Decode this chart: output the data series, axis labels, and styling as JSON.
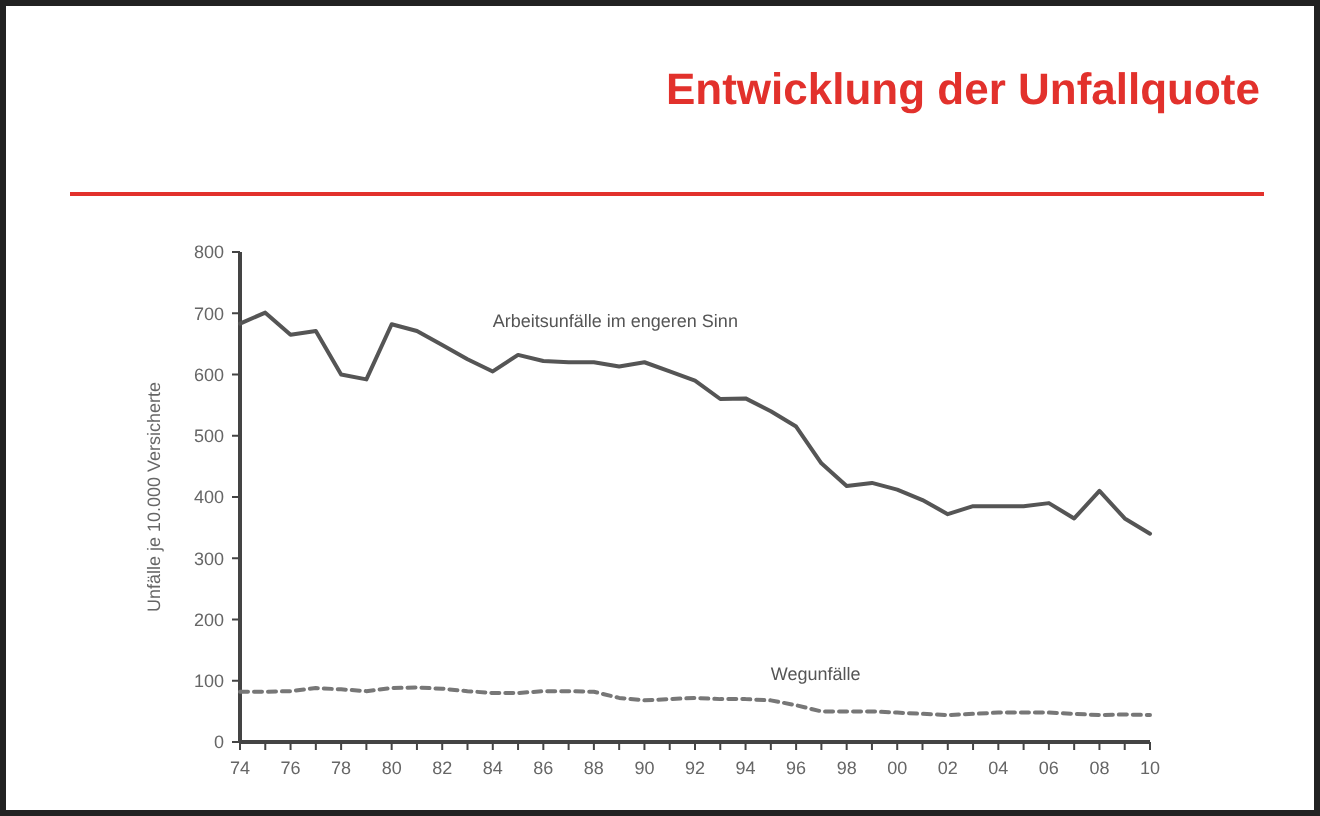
{
  "chart_data": {
    "type": "line",
    "title": "Entwicklung der Unfallquote",
    "ylabel": "Unfälle je 10.000 Versicherte",
    "x": [
      1974,
      1975,
      1976,
      1977,
      1978,
      1979,
      1980,
      1981,
      1982,
      1983,
      1984,
      1985,
      1986,
      1987,
      1988,
      1989,
      1990,
      1991,
      1992,
      1993,
      1994,
      1995,
      1996,
      1997,
      1998,
      1999,
      2000,
      2001,
      2002,
      2003,
      2004,
      2005,
      2006,
      2007,
      2008,
      2009,
      2010
    ],
    "series": [
      {
        "name": "Arbeitsunfälle im engeren Sinn",
        "color": "#555555",
        "line_style": "solid",
        "values": [
          683,
          701,
          665,
          671,
          600,
          592,
          682,
          671,
          648,
          625,
          605,
          632,
          622,
          620,
          620,
          613,
          620,
          605,
          590,
          560,
          561,
          540,
          515,
          455,
          418,
          423,
          412,
          395,
          372,
          385,
          385,
          385,
          390,
          365,
          410,
          365,
          340
        ]
      },
      {
        "name": "Wegunfälle",
        "color": "#777777",
        "line_style": "dashed",
        "values": [
          82,
          82,
          83,
          88,
          86,
          83,
          88,
          89,
          87,
          83,
          80,
          80,
          83,
          83,
          82,
          72,
          68,
          70,
          72,
          70,
          70,
          68,
          60,
          50,
          50,
          50,
          48,
          46,
          44,
          46,
          48,
          48,
          48,
          46,
          44,
          45,
          44
        ]
      }
    ],
    "xlim": [
      1974,
      2010
    ],
    "xticks": [
      {
        "value": 1974,
        "label": "74"
      },
      {
        "value": 1975,
        "label": null
      },
      {
        "value": 1976,
        "label": "76"
      },
      {
        "value": 1977,
        "label": null
      },
      {
        "value": 1978,
        "label": "78"
      },
      {
        "value": 1979,
        "label": null
      },
      {
        "value": 1980,
        "label": "80"
      },
      {
        "value": 1981,
        "label": null
      },
      {
        "value": 1982,
        "label": "82"
      },
      {
        "value": 1983,
        "label": null
      },
      {
        "value": 1984,
        "label": "84"
      },
      {
        "value": 1985,
        "label": null
      },
      {
        "value": 1986,
        "label": "86"
      },
      {
        "value": 1987,
        "label": null
      },
      {
        "value": 1988,
        "label": "88"
      },
      {
        "value": 1989,
        "label": null
      },
      {
        "value": 1990,
        "label": "90"
      },
      {
        "value": 1991,
        "label": null
      },
      {
        "value": 1992,
        "label": "92"
      },
      {
        "value": 1993,
        "label": null
      },
      {
        "value": 1994,
        "label": "94"
      },
      {
        "value": 1995,
        "label": null
      },
      {
        "value": 1996,
        "label": "96"
      },
      {
        "value": 1997,
        "label": null
      },
      {
        "value": 1998,
        "label": "98"
      },
      {
        "value": 1999,
        "label": null
      },
      {
        "value": 2000,
        "label": "00"
      },
      {
        "value": 2001,
        "label": null
      },
      {
        "value": 2002,
        "label": "02"
      },
      {
        "value": 2003,
        "label": null
      },
      {
        "value": 2004,
        "label": "04"
      },
      {
        "value": 2005,
        "label": null
      },
      {
        "value": 2006,
        "label": "06"
      },
      {
        "value": 2007,
        "label": null
      },
      {
        "value": 2008,
        "label": "08"
      },
      {
        "value": 2009,
        "label": null
      },
      {
        "value": 2010,
        "label": "10"
      }
    ],
    "ylim": [
      0,
      800
    ],
    "yticks": [
      0,
      100,
      200,
      300,
      400,
      500,
      600,
      700,
      800
    ],
    "grid": false,
    "marker": "none"
  }
}
